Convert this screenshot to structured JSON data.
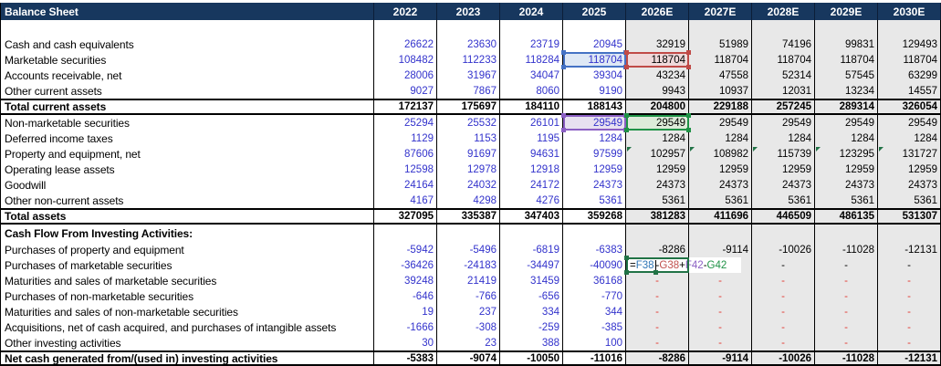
{
  "title": "Balance Sheet",
  "columns": [
    "2022",
    "2023",
    "2024",
    "2025",
    "2026E",
    "2027E",
    "2028E",
    "2029E",
    "2030E"
  ],
  "forecast_start_index": 4,
  "colors": {
    "header_bg": "#17375E",
    "header_text": "#FFFFFF",
    "historical_text": "#3333CC",
    "forecast_text": "#000000",
    "forecast_bg": "#E8E8E8",
    "grid": "#000000",
    "red_dash": "#E23B33",
    "ref_blue": "#4472C4",
    "ref_blue_fill": "#DEE8F5",
    "ref_red": "#C04A47",
    "ref_red_fill": "#EFD9DA",
    "ref_purple": "#8B5FC3",
    "ref_purple_fill": "#E7E1F0",
    "ref_green": "#1F9246",
    "ref_green_fill": "#DDEBD9",
    "edit_border_green": "#217346",
    "error_triangle_green": "#217346"
  },
  "rows": [
    {
      "type": "blank",
      "label": "",
      "values": [
        "",
        "",
        "",
        "",
        "",
        "",
        "",
        "",
        ""
      ]
    },
    {
      "type": "data",
      "label": "Cash and cash equivalents",
      "values": [
        "26622",
        "23630",
        "23719",
        "20945",
        "32919",
        "51989",
        "74196",
        "99831",
        "129493"
      ]
    },
    {
      "type": "data",
      "label": "Marketable securities",
      "values": [
        "108482",
        "112233",
        "118284",
        "118704",
        "118704",
        "118704",
        "118704",
        "118704",
        "118704"
      ]
    },
    {
      "type": "data",
      "label": "Accounts receivable, net",
      "values": [
        "28006",
        "31967",
        "34047",
        "39304",
        "43234",
        "47558",
        "52314",
        "57545",
        "63299"
      ]
    },
    {
      "type": "data",
      "label": "Other current assets",
      "values": [
        "9027",
        "7867",
        "8060",
        "9190",
        "9943",
        "10937",
        "12031",
        "13234",
        "14557"
      ]
    },
    {
      "type": "total",
      "label": "Total current assets",
      "values": [
        "172137",
        "175697",
        "184110",
        "188143",
        "204800",
        "229188",
        "257245",
        "289314",
        "326054"
      ]
    },
    {
      "type": "data",
      "label": "Non-marketable securities",
      "values": [
        "25294",
        "25532",
        "26101",
        "29549",
        "29549",
        "29549",
        "29549",
        "29549",
        "29549"
      ]
    },
    {
      "type": "data",
      "label": "Deferred income taxes",
      "values": [
        "1129",
        "1153",
        "1195",
        "1284",
        "1284",
        "1284",
        "1284",
        "1284",
        "1284"
      ]
    },
    {
      "type": "data",
      "label": "Property and equipment, net",
      "values": [
        "87606",
        "91697",
        "94631",
        "97599",
        "102957",
        "108982",
        "115739",
        "123295",
        "131727"
      ]
    },
    {
      "type": "data",
      "label": "Operating lease assets",
      "values": [
        "12598",
        "12978",
        "12918",
        "12959",
        "12959",
        "12959",
        "12959",
        "12959",
        "12959"
      ]
    },
    {
      "type": "data",
      "label": "Goodwill",
      "values": [
        "24164",
        "24032",
        "24172",
        "24373",
        "24373",
        "24373",
        "24373",
        "24373",
        "24373"
      ]
    },
    {
      "type": "data",
      "label": "Other non-current assets",
      "values": [
        "4167",
        "4298",
        "4276",
        "5361",
        "5361",
        "5361",
        "5361",
        "5361",
        "5361"
      ]
    },
    {
      "type": "total",
      "label": "Total assets",
      "values": [
        "327095",
        "335387",
        "347403",
        "359268",
        "381283",
        "411696",
        "446509",
        "486135",
        "531307"
      ]
    },
    {
      "type": "section",
      "label": "Cash Flow From Investing Activities:",
      "values": [
        "",
        "",
        "",
        "",
        "",
        "",
        "",
        "",
        ""
      ]
    },
    {
      "type": "data",
      "label": "Purchases of property and equipment",
      "values": [
        "-5942",
        "-5496",
        "-6819",
        "-6383",
        "-8286",
        "-9114",
        "-10026",
        "-11028",
        "-12131"
      ]
    },
    {
      "type": "data",
      "label": "Purchases of marketable securities",
      "dash_color": "black",
      "values": [
        "-36426",
        "-24183",
        "-34497",
        "-40090",
        "FORMULA",
        "",
        "-",
        "-",
        "-"
      ]
    },
    {
      "type": "data",
      "label": "Maturities and sales of marketable securities",
      "dash_color": "red",
      "values": [
        "39248",
        "21419",
        "31459",
        "36168",
        "-",
        "-",
        "-",
        "-",
        "-"
      ]
    },
    {
      "type": "data",
      "label": "Purchases of non-marketable securities",
      "dash_color": "red",
      "values": [
        "-646",
        "-766",
        "-656",
        "-770",
        "-",
        "-",
        "-",
        "-",
        "-"
      ]
    },
    {
      "type": "data",
      "label": "Maturities and sales of non-marketable securities",
      "dash_color": "red",
      "values": [
        "19",
        "237",
        "334",
        "344",
        "-",
        "-",
        "-",
        "-",
        "-"
      ]
    },
    {
      "type": "data",
      "label": "Acquisitions, net of cash acquired, and purchases of intangible assets",
      "dash_color": "red",
      "values": [
        "-1666",
        "-308",
        "-259",
        "-385",
        "-",
        "-",
        "-",
        "-",
        "-"
      ]
    },
    {
      "type": "data",
      "label": "Other investing activities",
      "dash_color": "red",
      "values": [
        "30",
        "23",
        "388",
        "100",
        "-",
        "-",
        "-",
        "-",
        "-"
      ]
    },
    {
      "type": "total",
      "label": "Net cash generated from/(used in) investing activities",
      "values": [
        "-5383",
        "-9074",
        "-10050",
        "-11016",
        "-8286",
        "-9114",
        "-10026",
        "-11028",
        "-12131"
      ]
    }
  ],
  "reference_boxes": [
    {
      "ref": "F38",
      "row_index": 2,
      "col_index": 3,
      "border": "#4472C4",
      "fill": "#DEE8F5"
    },
    {
      "ref": "G38",
      "row_index": 2,
      "col_index": 4,
      "border": "#C04A47",
      "fill": "#EFD9DA"
    },
    {
      "ref": "F42",
      "row_index": 6,
      "col_index": 3,
      "border": "#8B5FC3",
      "fill": "#E7E1F0"
    },
    {
      "ref": "G42",
      "row_index": 6,
      "col_index": 4,
      "border": "#1F9246",
      "fill": "#DDEBD9"
    }
  ],
  "error_flags": {
    "row_index": 8,
    "col_indices": [
      4,
      5,
      6,
      7,
      8
    ]
  },
  "formula": {
    "row_index": 15,
    "col_index": 4,
    "caret_after_segment": 1,
    "spill_width": 126,
    "segments": [
      {
        "text": "=",
        "color": "#000000"
      },
      {
        "text": "F38",
        "color": "#2E75B6"
      },
      {
        "text": "-",
        "color": "#000000"
      },
      {
        "text": "G38",
        "color": "#C0504D"
      },
      {
        "text": "+",
        "color": "#000000"
      },
      {
        "text": "F42",
        "color": "#8B5FC3"
      },
      {
        "text": "-",
        "color": "#000000"
      },
      {
        "text": "G42",
        "color": "#1F9246"
      }
    ]
  }
}
